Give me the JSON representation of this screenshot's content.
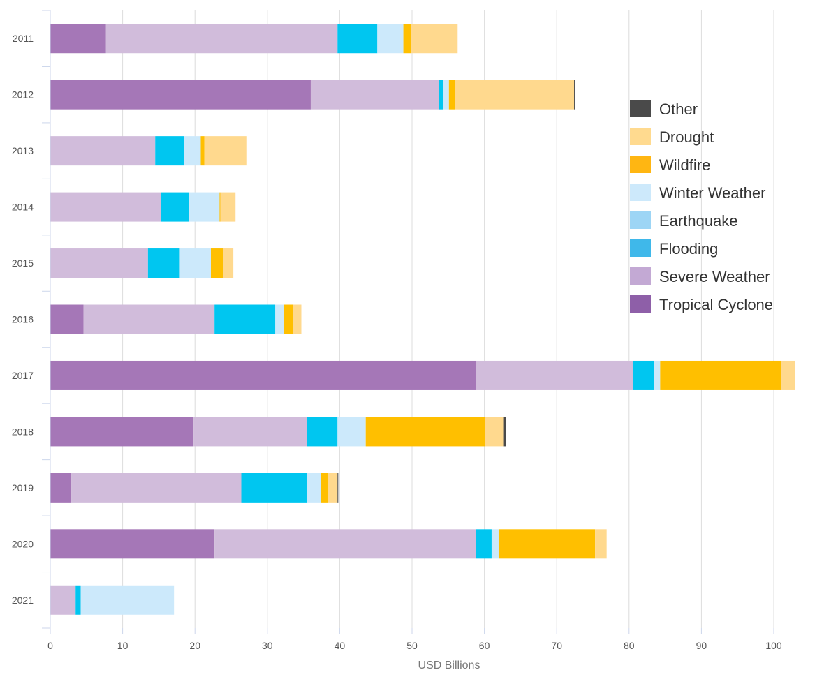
{
  "chart_data": {
    "type": "bar",
    "orientation": "horizontal",
    "stacked": true,
    "title": "",
    "xlabel": "USD Billions",
    "ylabel": "",
    "xlim": [
      0,
      104
    ],
    "xticks": [
      0,
      10,
      20,
      30,
      40,
      50,
      60,
      70,
      80,
      90,
      100
    ],
    "grid": true,
    "legend_position": "right",
    "categories": [
      "2011",
      "2012",
      "2013",
      "2014",
      "2015",
      "2016",
      "2017",
      "2018",
      "2019",
      "2020",
      "2021"
    ],
    "series": [
      {
        "name": "Tropical Cyclone",
        "color": "#a577b7",
        "legend_color": "#8e5fa8",
        "values": [
          7.7,
          36.0,
          0,
          0,
          0,
          4.6,
          58.8,
          19.8,
          2.9,
          22.7,
          0
        ]
      },
      {
        "name": "Severe Weather",
        "color": "#d1bcdb",
        "legend_color": "#c3a9d4",
        "values": [
          32.0,
          17.7,
          14.5,
          15.3,
          13.5,
          18.1,
          21.7,
          15.7,
          23.5,
          36.1,
          3.5
        ]
      },
      {
        "name": "Flooding",
        "color": "#00c6f0",
        "legend_color": "#3fb8ea",
        "values": [
          5.5,
          0.6,
          4.0,
          3.9,
          4.4,
          8.4,
          2.9,
          4.2,
          9.1,
          2.2,
          0.7
        ]
      },
      {
        "name": "Earthquake",
        "color": "#9dd5f5",
        "legend_color": "#9dd5f5",
        "values": [
          0,
          0,
          0,
          0,
          0,
          0,
          0,
          0,
          0,
          0,
          0
        ]
      },
      {
        "name": "Winter Weather",
        "color": "#cce9fb",
        "legend_color": "#cde9fb",
        "values": [
          3.6,
          0.8,
          2.3,
          4.2,
          4.3,
          1.2,
          0.9,
          3.9,
          1.9,
          1.0,
          12.9
        ]
      },
      {
        "name": "Wildfire",
        "color": "#ffbf00",
        "legend_color": "#ffb612",
        "values": [
          1.1,
          0.8,
          0.5,
          0.1,
          1.7,
          1.2,
          16.7,
          16.5,
          1.0,
          13.3,
          0
        ]
      },
      {
        "name": "Drought",
        "color": "#ffd98e",
        "legend_color": "#ffda8f",
        "values": [
          6.4,
          16.5,
          5.8,
          2.1,
          1.4,
          1.2,
          1.9,
          2.6,
          1.3,
          1.6,
          0
        ]
      },
      {
        "name": "Other",
        "color": "#4a4a4a",
        "legend_color": "#4a4a4a",
        "values": [
          0,
          0.1,
          0,
          0,
          0,
          0,
          0,
          0.3,
          0.1,
          0,
          0
        ]
      }
    ]
  }
}
